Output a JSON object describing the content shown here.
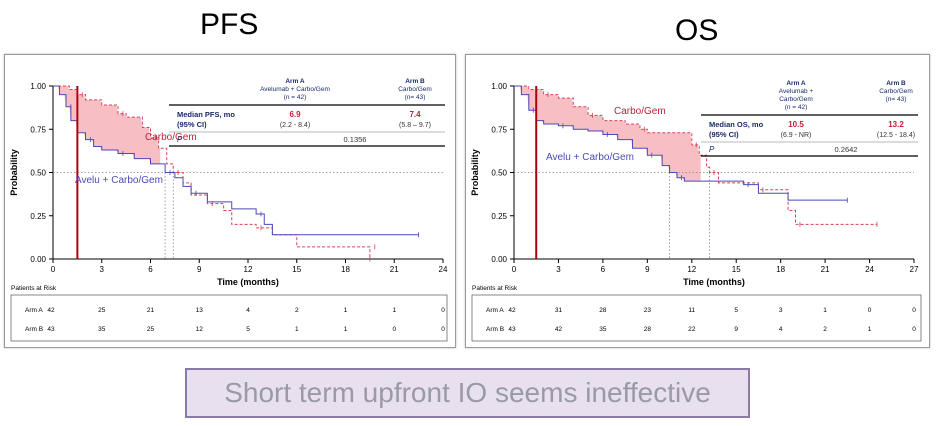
{
  "titles": {
    "pfs": "PFS",
    "os": "OS"
  },
  "caption": "Short term upfront IO seems ineffective",
  "colors": {
    "arm_a": "#4a4ab8",
    "arm_b": "#d8405a",
    "band": "#f6b8be",
    "marker": "#b00010",
    "label_red": "#c0203a"
  },
  "chart_data": [
    {
      "type": "line",
      "title": "PFS",
      "xlabel": "Time (months)",
      "ylabel": "Probability",
      "xticks": [
        0,
        3,
        6,
        9,
        12,
        15,
        18,
        21,
        24
      ],
      "yticks": [
        "0.00",
        "0.25",
        "0.50",
        "0.75",
        "1.00"
      ],
      "xlim": [
        0,
        24
      ],
      "ylim": [
        0,
        1
      ],
      "curve_labels": {
        "arm_b": "Carbo/Gem",
        "arm_a": "Avelu + Carbo/Gem"
      },
      "series": [
        {
          "name": "Arm A",
          "style": "solid",
          "points": [
            [
              0,
              1.0
            ],
            [
              0.4,
              0.95
            ],
            [
              0.8,
              0.88
            ],
            [
              1.1,
              0.8
            ],
            [
              1.5,
              0.73
            ],
            [
              2.0,
              0.69
            ],
            [
              2.5,
              0.65
            ],
            [
              3.0,
              0.63
            ],
            [
              4.0,
              0.61
            ],
            [
              5.0,
              0.58
            ],
            [
              6.0,
              0.55
            ],
            [
              6.9,
              0.5
            ],
            [
              7.5,
              0.47
            ],
            [
              8.0,
              0.42
            ],
            [
              8.5,
              0.38
            ],
            [
              9.5,
              0.33
            ],
            [
              11.0,
              0.29
            ],
            [
              12.5,
              0.26
            ],
            [
              13.0,
              0.2
            ],
            [
              13.5,
              0.14
            ],
            [
              22.5,
              0.14
            ]
          ]
        },
        {
          "name": "Arm B",
          "style": "dashed",
          "points": [
            [
              0,
              1.0
            ],
            [
              1.0,
              0.98
            ],
            [
              1.5,
              0.95
            ],
            [
              2.0,
              0.92
            ],
            [
              3.0,
              0.89
            ],
            [
              4.0,
              0.84
            ],
            [
              4.5,
              0.82
            ],
            [
              5.5,
              0.76
            ],
            [
              6.0,
              0.7
            ],
            [
              6.5,
              0.64
            ],
            [
              7.0,
              0.55
            ],
            [
              7.4,
              0.5
            ],
            [
              8.0,
              0.44
            ],
            [
              8.5,
              0.37
            ],
            [
              9.5,
              0.32
            ],
            [
              10.5,
              0.28
            ],
            [
              11.0,
              0.2
            ],
            [
              12.5,
              0.18
            ],
            [
              13.5,
              0.14
            ],
            [
              15.0,
              0.07
            ],
            [
              19.5,
              0.07
            ],
            [
              19.5,
              0.0
            ]
          ]
        }
      ],
      "table": {
        "headers": [
          "",
          "Arm A\nAvelumab + Carbo/Gem\n(n = 42)",
          "Arm B\nCarbo/Gem\n(n= 43)"
        ],
        "rows": [
          {
            "label": "Median PFS, mo\n(95% CI)",
            "a_value": "6.9",
            "a_ci": "(2.2 - 8.4)",
            "b_value": "7.4",
            "b_ci": "(5.8 – 9.7)"
          }
        ],
        "p_label": "P",
        "p_value": "0.1356"
      },
      "at_risk": {
        "title": "Patients at Risk",
        "rows": [
          {
            "label": "Arm A",
            "values": [
              "42",
              "25",
              "21",
              "13",
              "4",
              "2",
              "1",
              "1",
              "0"
            ]
          },
          {
            "label": "Arm B",
            "values": [
              "43",
              "35",
              "25",
              "12",
              "5",
              "1",
              "1",
              "0",
              "0"
            ]
          }
        ]
      }
    },
    {
      "type": "line",
      "title": "OS",
      "xlabel": "Time (months)",
      "ylabel": "Probability",
      "xticks": [
        0,
        3,
        6,
        9,
        12,
        15,
        18,
        21,
        24,
        27
      ],
      "yticks": [
        "0.00",
        "0.25",
        "0.50",
        "0.75",
        "1.00"
      ],
      "xlim": [
        0,
        27
      ],
      "ylim": [
        0,
        1
      ],
      "curve_labels": {
        "arm_b": "Carbo/Gem",
        "arm_a": "Avelu + Carbo/Gem"
      },
      "series": [
        {
          "name": "Arm A",
          "style": "solid",
          "points": [
            [
              0,
              1.0
            ],
            [
              0.5,
              0.95
            ],
            [
              1.0,
              0.86
            ],
            [
              1.5,
              0.8
            ],
            [
              2.0,
              0.78
            ],
            [
              3.0,
              0.77
            ],
            [
              4.0,
              0.75
            ],
            [
              5.0,
              0.74
            ],
            [
              6.0,
              0.72
            ],
            [
              7.0,
              0.69
            ],
            [
              8.0,
              0.64
            ],
            [
              9.0,
              0.6
            ],
            [
              10.0,
              0.54
            ],
            [
              10.5,
              0.5
            ],
            [
              11.0,
              0.47
            ],
            [
              11.5,
              0.45
            ],
            [
              15.0,
              0.45
            ],
            [
              15.5,
              0.43
            ],
            [
              16.5,
              0.38
            ],
            [
              18.5,
              0.34
            ],
            [
              22.5,
              0.34
            ]
          ]
        },
        {
          "name": "Arm B",
          "style": "dashed",
          "points": [
            [
              0,
              1.0
            ],
            [
              1.0,
              0.98
            ],
            [
              2.0,
              0.95
            ],
            [
              3.0,
              0.93
            ],
            [
              4.0,
              0.88
            ],
            [
              5.0,
              0.83
            ],
            [
              6.0,
              0.8
            ],
            [
              7.5,
              0.78
            ],
            [
              8.5,
              0.75
            ],
            [
              9.0,
              0.73
            ],
            [
              11.0,
              0.73
            ],
            [
              12.0,
              0.66
            ],
            [
              12.5,
              0.6
            ],
            [
              13.0,
              0.53
            ],
            [
              13.2,
              0.5
            ],
            [
              13.8,
              0.44
            ],
            [
              15.0,
              0.44
            ],
            [
              16.5,
              0.4
            ],
            [
              18.0,
              0.4
            ],
            [
              18.5,
              0.28
            ],
            [
              19.0,
              0.2
            ],
            [
              24.5,
              0.2
            ]
          ]
        }
      ],
      "table": {
        "headers": [
          "",
          "Arm A\nAvelumab +\nCarbo/Gem\n(n = 42)",
          "Arm B\nCarbo/Gem\n(n= 43)"
        ],
        "rows": [
          {
            "label": "Median OS, mo\n(95% CI)",
            "a_value": "10.5",
            "a_ci": "(6.9 - NR)",
            "b_value": "13.2",
            "b_ci": "(12.5 - 18.4)"
          }
        ],
        "p_label": "P",
        "p_value": "0.2642"
      },
      "at_risk": {
        "title": "Patients at Risk",
        "rows": [
          {
            "label": "Arm A",
            "values": [
              "42",
              "31",
              "28",
              "23",
              "11",
              "5",
              "3",
              "1",
              "0",
              "0"
            ]
          },
          {
            "label": "Arm B",
            "values": [
              "43",
              "42",
              "35",
              "28",
              "22",
              "9",
              "4",
              "2",
              "1",
              "0"
            ]
          }
        ]
      }
    }
  ]
}
